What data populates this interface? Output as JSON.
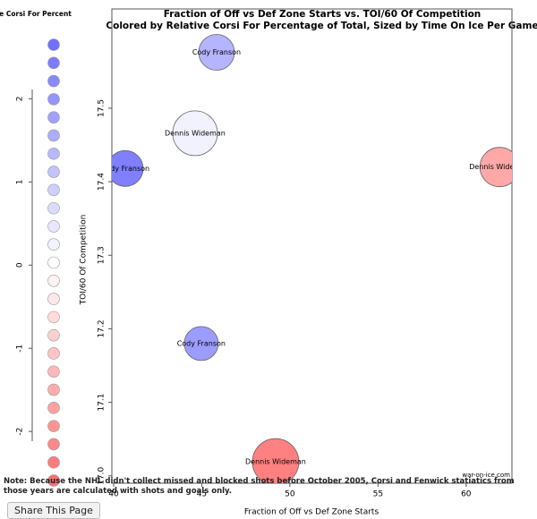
{
  "chart_data": {
    "type": "bubble",
    "title": "Fraction of Off vs Def Zone Starts vs. TOI/60 Of Competition",
    "subtitle": "Colored by Relative Corsi For Percentage of Total, Sized by Time On Ice Per Game",
    "x_label": "Fraction of Off vs Def Zone Starts",
    "y_label": "TOI/60 Of Competition",
    "labels": [
      "Cody Franson",
      "Dennis Wideman",
      "Cody Franson",
      "Dennis Wideman",
      "Cody Franson",
      "Dennis Wideman"
    ],
    "x": [
      45.84,
      44.62,
      40.66,
      61.9,
      44.97,
      49.19
    ],
    "values": [
      17.576,
      17.466,
      17.418,
      17.42,
      17.18,
      17.019
    ],
    "sizes": [
      20,
      25,
      20,
      22,
      19,
      26
    ],
    "colors": [
      "#b4b4ff",
      "#f2f2ff",
      "#7f7fff",
      "#ffa8a8",
      "#9c9cff",
      "#ff8080"
    ],
    "xlim": [
      39.9,
      62.6
    ],
    "xticks": [
      40,
      45,
      50,
      55,
      60
    ],
    "ylim": [
      16.99,
      17.635
    ],
    "yticks": [
      {
        "value": 17,
        "label": "17.0"
      },
      17.1,
      17.2,
      17.3,
      17.4,
      17.5
    ],
    "colorbar": {
      "title": "tive Corsi For Percent",
      "lim": [
        -2.59,
        2.65
      ],
      "ticks": [
        -2,
        -1,
        0,
        1,
        2
      ],
      "low_color": "#ff7070",
      "mid_color": "#ffffff",
      "high_color": "#7070ff"
    },
    "source": "war-on-ice.com"
  },
  "note": "Note: Because the NHL didn't collect missed and blocked shots before October 2005, Corsi and Fenwick statiatics from those years are calculated with shots and goals only.",
  "button": "Share This Page"
}
